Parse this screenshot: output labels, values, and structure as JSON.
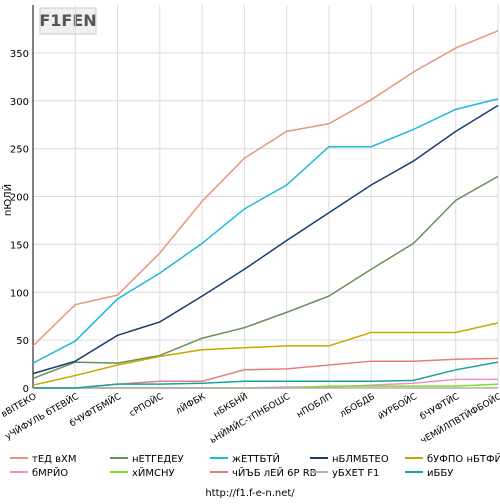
{
  "chart_data": {
    "type": "line",
    "logo": "F1FEN",
    "y_label": "пЮЛЙ",
    "footer": "http://f1.f-e-n.net/",
    "categories": [
      "вВITЕКО",
      "уЧЙФУЛЬ бТЕВЙС",
      "бЧУФТБМЙС",
      "сРПОЙС",
      "лЙФБК",
      "нБКБНЙ",
      "ьНЙМЙС-тПНБОШС",
      "нПОБЛП",
      "лБОБДБ",
      "йУРБОЙС",
      "бЧУФТЙС",
      "чЕМЙЛПВТЙФБОЙС"
    ],
    "series": [
      {
        "name": "тЕД вХМ",
        "color": "#e8967a",
        "values": [
          44,
          87,
          97,
          141,
          195,
          240,
          268,
          276,
          301,
          330,
          355,
          373
        ]
      },
      {
        "name": "нЕТГЕДЕУ",
        "color": "#6a8f5a",
        "values": [
          10,
          27,
          26,
          34,
          52,
          63,
          79,
          96,
          124,
          151,
          196,
          221
        ]
      },
      {
        "name": "жЕТТБТЙ",
        "color": "#1fb8e0",
        "values": [
          26,
          49,
          93,
          120,
          151,
          187,
          212,
          252,
          252,
          270,
          291,
          302
        ]
      },
      {
        "name": "нБЛМБТЕО",
        "color": "#1a3e6e",
        "values": [
          15,
          28,
          55,
          69,
          96,
          124,
          154,
          183,
          212,
          237,
          268,
          295
        ]
      },
      {
        "name": "бУФПО нБТФЙО",
        "color": "#c8a800",
        "values": [
          3,
          13,
          24,
          33,
          40,
          42,
          44,
          44,
          58,
          58,
          58,
          68
        ]
      },
      {
        "name": "бМРЙО",
        "color": "#f090c8",
        "values": [
          0,
          0,
          0,
          0,
          0,
          0,
          1,
          1,
          3,
          5,
          9,
          9
        ]
      },
      {
        "name": "хЙМСНУ",
        "color": "#7de020",
        "values": [
          0,
          0,
          0,
          0,
          0,
          0,
          0,
          2,
          2,
          2,
          2,
          4
        ]
      },
      {
        "name": "чЙЪБ лЕЙ 6Р RB",
        "color": "#e77e7e",
        "values": [
          0,
          0,
          4,
          7,
          7,
          19,
          20,
          24,
          28,
          28,
          30,
          31
        ]
      },
      {
        "name": "уБХЕТ F1",
        "color": "#b0b0b0",
        "values": [
          0,
          0,
          0,
          0,
          0,
          0,
          0,
          0,
          0,
          0,
          0,
          0
        ]
      },
      {
        "name": "иББУ",
        "color": "#1aa0a0",
        "values": [
          0,
          0,
          4,
          4,
          5,
          7,
          7,
          7,
          7,
          8,
          19,
          27
        ]
      }
    ],
    "ylim": [
      0,
      400
    ],
    "yticks": [
      0,
      50,
      100,
      150,
      200,
      250,
      300,
      350
    ],
    "grid": true
  }
}
